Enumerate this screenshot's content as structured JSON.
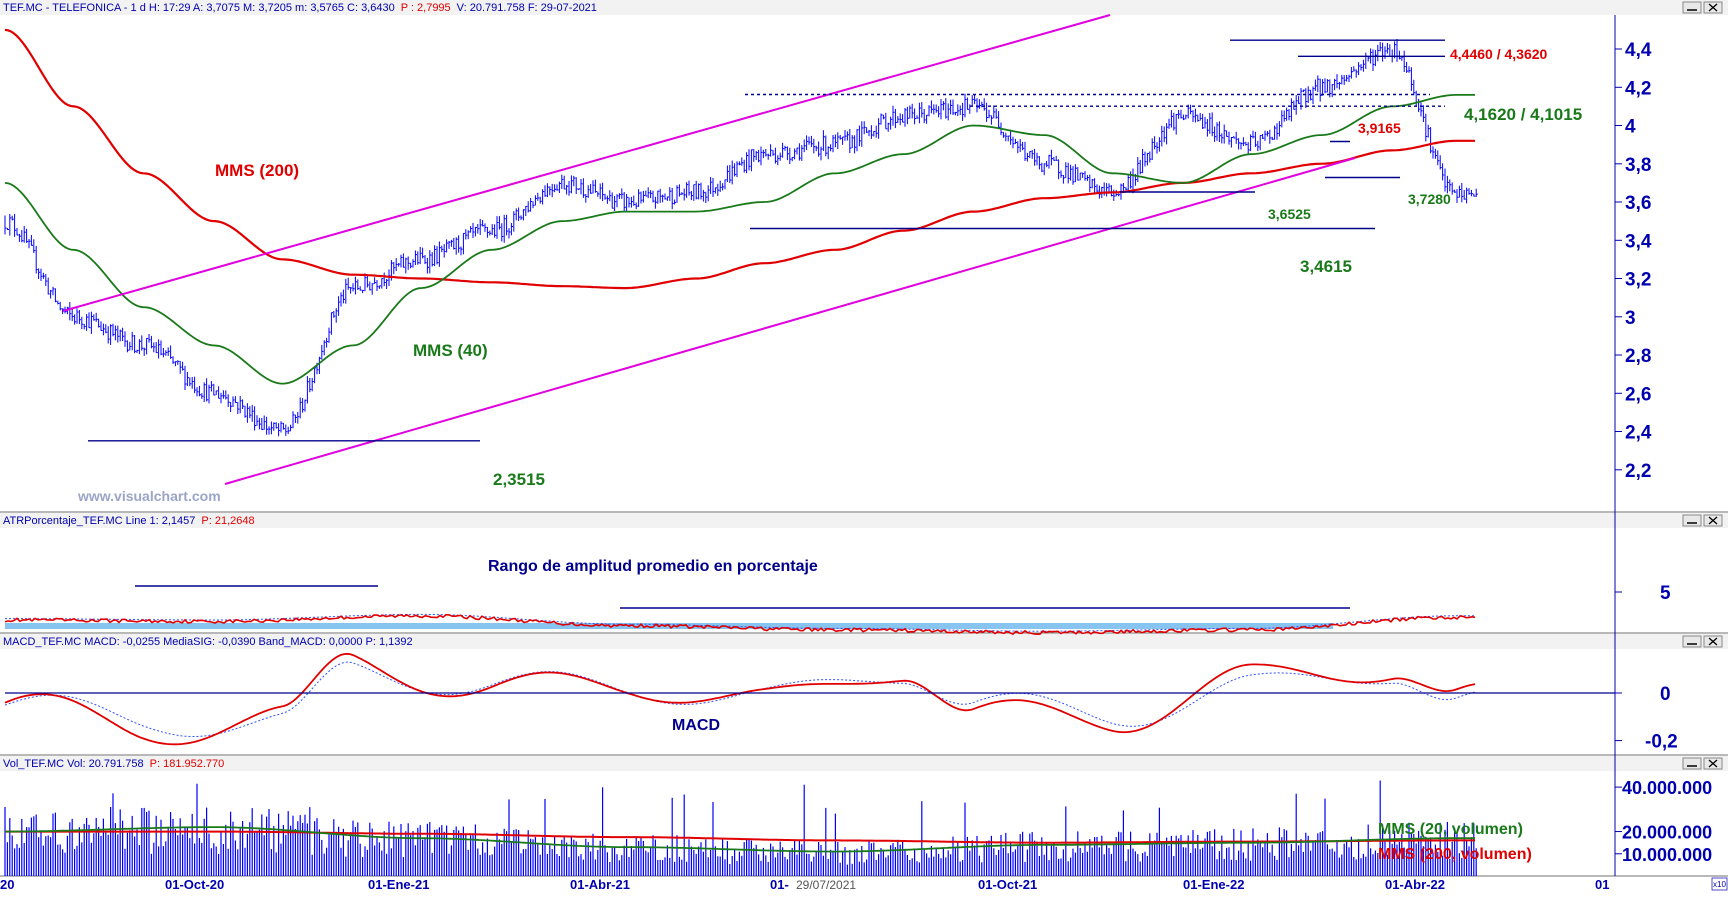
{
  "colors": {
    "header_bg": "#f2f2f2",
    "header_text": "#0000b0",
    "header_red": "#e00000",
    "axis": "#0000b0",
    "price": "#0000ff",
    "ma200": "#e00000",
    "ma40": "#1a7a1a",
    "channel": "#e000e0",
    "annot_blue": "#00008b",
    "annot_green": "#1a7a1a",
    "annot_red": "#e00000",
    "watermark": "#9aa5c8"
  },
  "icons": [
    "minimize-icon",
    "close-icon"
  ],
  "watermark": "www.visualchart.com",
  "panels": {
    "price": {
      "header_prefix": "TEF.MC - TELEFONICA -  1 d  H: 17:29  A: 3,7075  M: 3,7205  m: 3,5765  C: 3,6430",
      "header_p": "P : 2,7995",
      "header_suffix": "V: 20.791.758  F: 29-07-2021",
      "y_ticks": [
        "4,4",
        "4,2",
        "4",
        "3,8",
        "3,6",
        "3,4",
        "3,2",
        "3",
        "2,8",
        "2,6",
        "2,4",
        "2,2"
      ],
      "annotations": {
        "mms200": "MMS (200)",
        "mms40": "MMS (40)",
        "level_2_3515": "2,3515",
        "level_3_4615": "3,4615",
        "level_3_6525": "3,6525",
        "level_3_7280": "3,7280",
        "level_3_9165": "3,9165",
        "level_4_1620": "4,1620 / 4,1015",
        "level_4_4460": "4,4460 / 4,3620"
      }
    },
    "atr": {
      "header_prefix": "ATRPorcentaje_TEF.MC  Line 1: 2,1457",
      "header_p": "P: 21,2648",
      "y_ticks": [
        "5"
      ],
      "title": "Rango de amplitud promedio en porcentaje"
    },
    "macd": {
      "header": "MACD_TEF.MC  MACD: -0,0255  MediaSIG: -0,0390  Band_MACD: 0,0000  P: 1,1392",
      "y_ticks": [
        "0",
        "-0,2"
      ],
      "title": "MACD"
    },
    "volume": {
      "header_prefix": "Vol_TEF.MC  Vol: 20.791.758",
      "header_p": "P: 181.952.770",
      "y_ticks": [
        "40.000.000",
        "20.000.000",
        "10.000.000"
      ],
      "legend_ma20": "MMS (20, volumen)",
      "legend_ma200": "MMS (200, volumen)"
    }
  },
  "x_axis": {
    "labels": [
      "20",
      "01-Oct-20",
      "01-Ene-21",
      "01-Abr-21",
      "01-",
      "29/07/2021",
      "01-Oct-21",
      "01-Ene-22",
      "01-Abr-22",
      "01"
    ],
    "scale_badge": "x10"
  },
  "chart_data": [
    {
      "type": "line",
      "title": "TEF.MC - TELEFONICA",
      "x": [
        "2020-06",
        "2020-07",
        "2020-08",
        "2020-09",
        "2020-10",
        "2020-11",
        "2020-12",
        "2021-01",
        "2021-02",
        "2021-03",
        "2021-04",
        "2021-05",
        "2021-06",
        "2021-07",
        "2021-08",
        "2021-09",
        "2021-10",
        "2021-11",
        "2021-12",
        "2022-01",
        "2022-02",
        "2022-03"
      ],
      "series": [
        {
          "name": "TEF.MC",
          "values": [
            3.5,
            3.0,
            2.85,
            2.6,
            2.4,
            3.15,
            3.3,
            3.45,
            3.7,
            3.6,
            3.65,
            3.85,
            3.9,
            4.05,
            4.1,
            3.8,
            3.65,
            4.05,
            3.9,
            4.2,
            4.4,
            3.64
          ]
        },
        {
          "name": "MMS (40)",
          "values": [
            3.7,
            3.35,
            3.05,
            2.85,
            2.65,
            2.85,
            3.15,
            3.35,
            3.5,
            3.55,
            3.55,
            3.6,
            3.75,
            3.85,
            4.0,
            3.95,
            3.75,
            3.7,
            3.85,
            3.95,
            4.1,
            4.16
          ]
        },
        {
          "name": "MMS (200)",
          "values": [
            4.5,
            4.1,
            3.75,
            3.5,
            3.3,
            3.22,
            3.2,
            3.18,
            3.16,
            3.15,
            3.2,
            3.28,
            3.35,
            3.45,
            3.55,
            3.62,
            3.65,
            3.7,
            3.75,
            3.8,
            3.87,
            3.92
          ]
        }
      ],
      "ylim": [
        2.2,
        4.55
      ],
      "levels": [
        2.3515,
        3.4615,
        3.6525,
        3.728,
        3.9165,
        4.101,
        4.162,
        4.362,
        4.446
      ]
    },
    {
      "type": "line",
      "title": "ATRPorcentaje_TEF.MC",
      "x": [
        "2020-06",
        "2020-09",
        "2020-12",
        "2021-03",
        "2021-06",
        "2021-09",
        "2021-12",
        "2022-03"
      ],
      "series": [
        {
          "name": "Line 1",
          "values": [
            3.0,
            2.9,
            3.3,
            2.6,
            2.3,
            2.1,
            2.3,
            3.2
          ]
        }
      ],
      "ylim": [
        0,
        7
      ]
    },
    {
      "type": "line",
      "title": "MACD_TEF.MC",
      "x": [
        "2020-06",
        "2020-08",
        "2020-10",
        "2020-11",
        "2021-01",
        "2021-03",
        "2021-05",
        "2021-07",
        "2021-08",
        "2021-10",
        "2021-12",
        "2022-02",
        "2022-03"
      ],
      "series": [
        {
          "name": "MACD",
          "values": [
            -0.05,
            -0.15,
            -0.12,
            0.15,
            0.0,
            0.05,
            -0.05,
            0.12,
            -0.1,
            -0.1,
            0.05,
            0.12,
            -0.0255
          ]
        },
        {
          "name": "MediaSIG",
          "values": [
            -0.04,
            -0.12,
            -0.13,
            0.1,
            0.03,
            0.03,
            -0.03,
            0.1,
            -0.05,
            -0.09,
            0.02,
            0.1,
            -0.039
          ]
        }
      ],
      "ylim": [
        -0.25,
        0.2
      ]
    },
    {
      "type": "bar",
      "title": "Vol_TEF.MC",
      "x": [
        "2020-06",
        "2020-09",
        "2020-12",
        "2021-03",
        "2021-06",
        "2021-09",
        "2021-12",
        "2022-03"
      ],
      "series": [
        {
          "name": "MMS (20, volumen)",
          "values": [
            20000000,
            22000000,
            17000000,
            13000000,
            11000000,
            14000000,
            15000000,
            17000000
          ]
        },
        {
          "name": "MMS (200, volumen)",
          "values": [
            20000000,
            20000000,
            19000000,
            17500000,
            16000000,
            15000000,
            15500000,
            16000000
          ]
        }
      ],
      "ylim": [
        0,
        45000000
      ]
    }
  ]
}
